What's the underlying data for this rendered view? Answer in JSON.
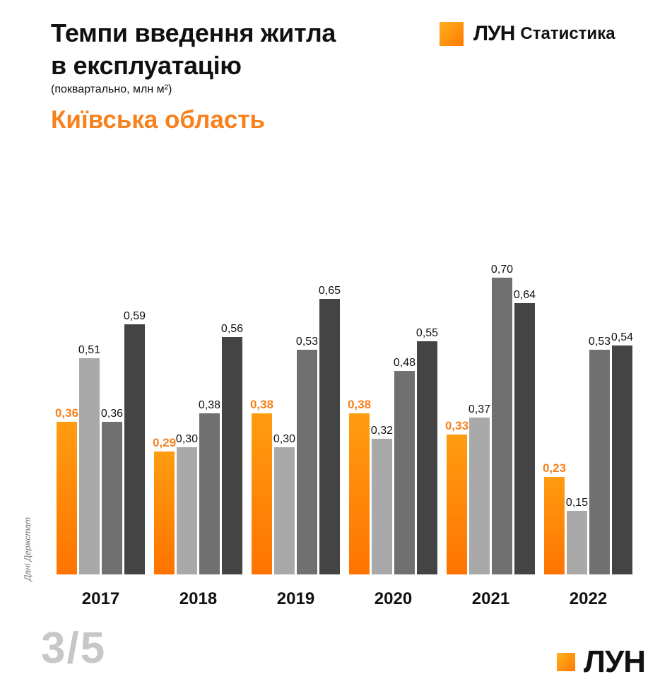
{
  "header": {
    "title_line1": "Темпи введення житла",
    "title_line2": "в експлуатацію",
    "subtitle": "(поквартально, млн м²)",
    "region": "Київська область"
  },
  "brand": {
    "name": "ЛУН",
    "section": "Статистика"
  },
  "source_note": "Дані Держстат",
  "page_indicator": "3/5",
  "colors": {
    "accent": "#f7811d",
    "q1": "#ff8a00",
    "q2": "#a9a9a9",
    "q3": "#707070",
    "q4": "#444444"
  },
  "chart_data": {
    "type": "bar",
    "categories": [
      "2017",
      "2018",
      "2019",
      "2020",
      "2021",
      "2022"
    ],
    "series": [
      {
        "values": [
          0.36,
          0.29,
          0.38,
          0.38,
          0.33,
          0.23
        ]
      },
      {
        "values": [
          0.51,
          0.3,
          0.3,
          0.32,
          0.37,
          0.15
        ]
      },
      {
        "values": [
          0.36,
          0.38,
          0.53,
          0.48,
          0.7,
          0.53
        ]
      },
      {
        "values": [
          0.59,
          0.56,
          0.65,
          0.55,
          0.64,
          0.54
        ]
      }
    ],
    "value_labels": [
      [
        "0,36",
        "0,29",
        "0,38",
        "0,38",
        "0,33",
        "0,23"
      ],
      [
        "0,51",
        "0,30",
        "0,30",
        "0,32",
        "0,37",
        "0,15"
      ],
      [
        "0,36",
        "0,38",
        "0,53",
        "0,48",
        "0,70",
        "0,53"
      ],
      [
        "0,59",
        "0,56",
        "0,65",
        "0,55",
        "0,64",
        "0,54"
      ]
    ],
    "ylim": [
      0,
      0.7
    ],
    "grid": false,
    "legend": "none"
  }
}
